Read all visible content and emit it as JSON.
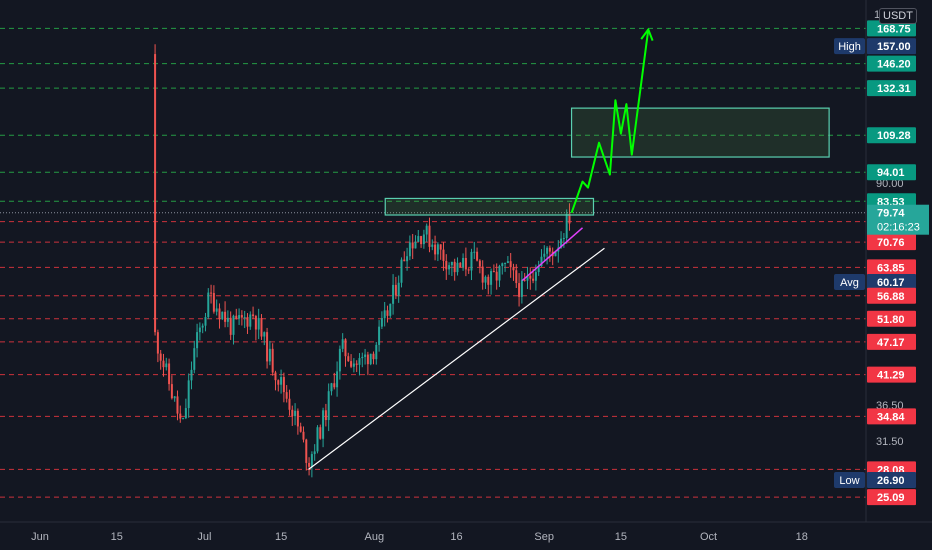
{
  "currency": "USDT",
  "currency_lead": "1",
  "chart_data": {
    "type": "candlestick",
    "title": "",
    "ylabel": "",
    "xlabel": "",
    "ylim": [
      24.0,
      176.0
    ],
    "y_scale": "log",
    "x_ticks": [
      "Jun",
      "15",
      "Jul",
      "15",
      "Aug",
      "16",
      "Sep",
      "15",
      "Oct",
      "18"
    ],
    "y_ticks_plain": [
      "90.00",
      "36.50",
      "31.50"
    ],
    "price_lines_green": [
      168.75,
      146.2,
      132.31,
      109.28,
      94.01,
      83.53
    ],
    "price_lines_red": [
      76.9,
      70.76,
      63.85,
      56.88,
      51.8,
      47.17,
      41.29,
      34.84,
      28.08,
      25.09
    ],
    "price_labels": [
      {
        "text": "168.75",
        "value": 168.75,
        "color": "#089981"
      },
      {
        "text": "157.00",
        "value": 157.0,
        "color": "#1e3a6b",
        "tag": "High"
      },
      {
        "text": "146.20",
        "value": 146.2,
        "color": "#089981"
      },
      {
        "text": "132.31",
        "value": 132.31,
        "color": "#089981"
      },
      {
        "text": "109.28",
        "value": 109.28,
        "color": "#089981"
      },
      {
        "text": "94.01",
        "value": 94.01,
        "color": "#089981"
      },
      {
        "text": "83.53",
        "value": 83.53,
        "color": "#089981"
      },
      {
        "text": "76.90",
        "value": 76.9,
        "color": "#089981"
      },
      {
        "text": "70.76",
        "value": 70.76,
        "color": "#f23645"
      },
      {
        "text": "63.85",
        "value": 63.85,
        "color": "#f23645"
      },
      {
        "text": "60.17",
        "value": 60.17,
        "color": "#1e3a6b",
        "tag": "Avg"
      },
      {
        "text": "56.88",
        "value": 56.88,
        "color": "#f23645"
      },
      {
        "text": "51.80",
        "value": 51.8,
        "color": "#f23645"
      },
      {
        "text": "47.17",
        "value": 47.17,
        "color": "#f23645"
      },
      {
        "text": "41.29",
        "value": 41.29,
        "color": "#f23645"
      },
      {
        "text": "34.84",
        "value": 34.84,
        "color": "#f23645"
      },
      {
        "text": "28.08",
        "value": 28.08,
        "color": "#f23645"
      },
      {
        "text": "26.90",
        "value": 26.9,
        "color": "#1e3a6b",
        "tag": "Low"
      },
      {
        "text": "25.09",
        "value": 25.09,
        "color": "#f23645"
      }
    ],
    "current_price": {
      "text": "79.74",
      "countdown": "02:16:23",
      "value": 79.74,
      "color": "#26a69a"
    },
    "price_path": [
      [
        "May 27",
        152
      ],
      [
        "Jun 1",
        118
      ],
      [
        "Jun 4",
        122
      ],
      [
        "Jun 7",
        100
      ],
      [
        "Jun 10",
        90
      ],
      [
        "Jun 14",
        76
      ],
      [
        "Jun 17",
        64
      ],
      [
        "Jun 20",
        56
      ],
      [
        "Jun 23",
        45
      ],
      [
        "Jun 27",
        33
      ],
      [
        "Jun 29",
        45
      ],
      [
        "Jul 2",
        57
      ],
      [
        "Jul 6",
        50
      ],
      [
        "Jul 10",
        53
      ],
      [
        "Jul 13",
        44
      ],
      [
        "Jul 17",
        36
      ],
      [
        "Jul 20",
        29
      ],
      [
        "Jul 23",
        35
      ],
      [
        "Jul 26",
        46
      ],
      [
        "Jul 29",
        43
      ],
      [
        "Aug 1",
        46
      ],
      [
        "Aug 4",
        55
      ],
      [
        "Aug 7",
        70
      ],
      [
        "Aug 10",
        74
      ],
      [
        "Aug 13",
        68
      ],
      [
        "Aug 16",
        63
      ],
      [
        "Aug 19",
        66
      ],
      [
        "Aug 22",
        60
      ],
      [
        "Aug 25",
        64
      ],
      [
        "Aug 28",
        58
      ],
      [
        "Aug 31",
        66
      ],
      [
        "Sep 3",
        69
      ],
      [
        "Sep 6",
        80
      ]
    ],
    "annotations": [
      {
        "type": "trendline",
        "color": "#ffffff",
        "from": [
          "Jul 20",
          28.08
        ],
        "to": [
          "Sep 12",
          69
        ]
      },
      {
        "type": "trendline",
        "color": "#e040fb",
        "from": [
          "Aug 28",
          60.5
        ],
        "to": [
          "Sep 8",
          75
        ]
      },
      {
        "type": "rectangle",
        "color": "#5ad0b0",
        "from": [
          "Aug 3",
          84.5
        ],
        "to": [
          "Sep 10",
          79.0
        ]
      },
      {
        "type": "rectangle",
        "color": "#5ad0b0",
        "from": [
          "Sep 6",
          122
        ],
        "to": [
          "Oct 23",
          100
        ]
      },
      {
        "type": "path_arrow",
        "color": "#00ff00",
        "points": [
          [
            "Sep 6",
            79.7
          ],
          [
            "Sep 8",
            90.5
          ],
          [
            "Sep 9",
            88.3
          ],
          [
            "Sep 11",
            106
          ],
          [
            "Sep 13",
            93.1
          ],
          [
            "Sep 14",
            126
          ],
          [
            "Sep 15",
            110
          ],
          [
            "Sep 16",
            124
          ],
          [
            "Sep 17",
            101
          ],
          [
            "Sep 20",
            168
          ]
        ]
      }
    ]
  }
}
